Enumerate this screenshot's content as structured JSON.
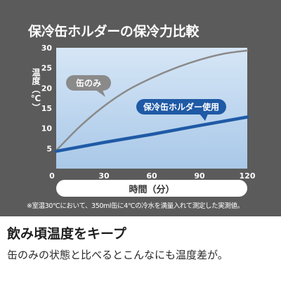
{
  "chart_data": {
    "type": "line",
    "title": "保冷缶ホルダーの保冷力比較",
    "xlabel": "時間（分）",
    "ylabel": "温度（℃）",
    "xlim": [
      0,
      120
    ],
    "ylim": [
      0,
      30
    ],
    "x_ticks": [
      0,
      30,
      60,
      90,
      120
    ],
    "y_ticks": [
      0,
      5,
      10,
      15,
      20,
      25,
      30
    ],
    "grid": false,
    "series": [
      {
        "name": "缶のみ",
        "color": "#8a8a8a",
        "x": [
          0,
          15,
          30,
          45,
          60,
          75,
          90,
          105,
          120
        ],
        "y": [
          4.5,
          10.5,
          15.5,
          19.5,
          22.5,
          25,
          27,
          28.5,
          29.3
        ]
      },
      {
        "name": "保冷缶ホルダー使用",
        "color": "#1f5aa6",
        "x": [
          0,
          30,
          60,
          90,
          120
        ],
        "y": [
          4.3,
          6.5,
          8.5,
          10.7,
          12.8
        ]
      }
    ],
    "footnote": "※室温30℃において、350ml缶に4℃の冷水を満量入れて測定した実測値。"
  },
  "copy": {
    "heading": "飲み頃温度をキープ",
    "subtext": "缶のみの状態と比べるとこんなにも温度差が。"
  }
}
